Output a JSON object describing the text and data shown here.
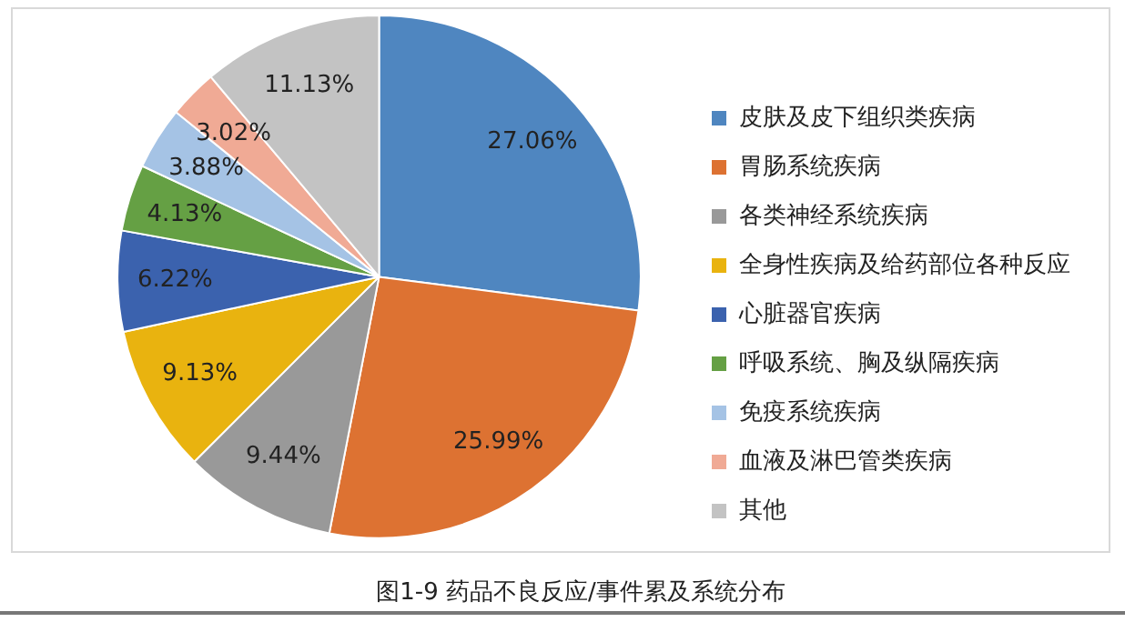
{
  "chart_data": {
    "type": "pie",
    "title": "图1-9 药品不良反应/事件累及系统分布",
    "categories": [
      "皮肤及皮下组织类疾病",
      "胃肠系统疾病",
      "各类神经系统疾病",
      "全身性疾病及给药部位各种反应",
      "心脏器官疾病",
      "呼吸系统、胸及纵隔疾病",
      "免疫系统疾病",
      "血液及淋巴管类疾病",
      "其他"
    ],
    "values": [
      27.06,
      25.99,
      9.44,
      9.13,
      6.22,
      4.13,
      3.88,
      3.02,
      11.13
    ],
    "value_labels": [
      "27.06%",
      "25.99%",
      "9.44%",
      "9.13%",
      "6.22%",
      "4.13%",
      "3.88%",
      "3.02%",
      "11.13%"
    ],
    "colors": [
      "#4f86c0",
      "#dd7232",
      "#999999",
      "#e9b30f",
      "#3b62ae",
      "#65a044",
      "#a5c3e5",
      "#f0aa95",
      "#c3c3c3"
    ],
    "legend": "right"
  }
}
